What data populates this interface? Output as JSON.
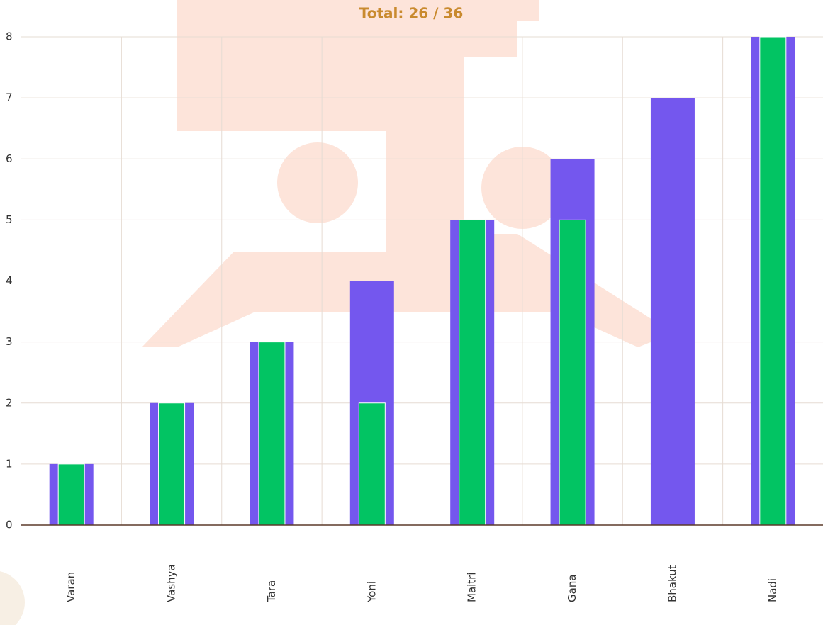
{
  "chart_data": {
    "type": "bar",
    "title": "Total: 26 / 36",
    "categories": [
      "Varan",
      "Vashya",
      "Tara",
      "Yoni",
      "Maitri",
      "Gana",
      "Bhakut",
      "Nadi"
    ],
    "series": [
      {
        "color": "#7457ee",
        "values": [
          1,
          2,
          3,
          4,
          5,
          6,
          7,
          8
        ]
      },
      {
        "color": "#02c463",
        "values": [
          1,
          2,
          3,
          2,
          5,
          5,
          0,
          8
        ]
      }
    ],
    "ylim": [
      0,
      8
    ],
    "yticks": [
      0,
      1,
      2,
      3,
      4,
      5,
      6,
      7,
      8
    ],
    "grid": true
  }
}
